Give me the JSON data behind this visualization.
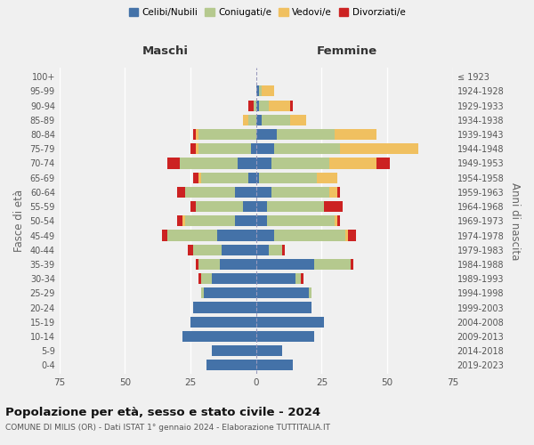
{
  "age_groups": [
    "100+",
    "95-99",
    "90-94",
    "85-89",
    "80-84",
    "75-79",
    "70-74",
    "65-69",
    "60-64",
    "55-59",
    "50-54",
    "45-49",
    "40-44",
    "35-39",
    "30-34",
    "25-29",
    "20-24",
    "15-19",
    "10-14",
    "5-9",
    "0-4"
  ],
  "birth_years": [
    "≤ 1923",
    "1924-1928",
    "1929-1933",
    "1934-1938",
    "1939-1943",
    "1944-1948",
    "1949-1953",
    "1954-1958",
    "1959-1963",
    "1964-1968",
    "1969-1973",
    "1974-1978",
    "1979-1983",
    "1984-1988",
    "1989-1993",
    "1994-1998",
    "1999-2003",
    "2004-2008",
    "2009-2013",
    "2014-2018",
    "2019-2023"
  ],
  "males": {
    "celibe": [
      0,
      0,
      0,
      0,
      0,
      2,
      7,
      3,
      8,
      5,
      8,
      15,
      13,
      14,
      17,
      20,
      24,
      25,
      28,
      17,
      19
    ],
    "coniugato": [
      0,
      0,
      1,
      3,
      22,
      20,
      22,
      18,
      19,
      18,
      19,
      19,
      11,
      8,
      4,
      1,
      0,
      0,
      0,
      0,
      0
    ],
    "vedovo": [
      0,
      0,
      0,
      2,
      1,
      1,
      0,
      1,
      0,
      0,
      1,
      0,
      0,
      0,
      0,
      0,
      0,
      0,
      0,
      0,
      0
    ],
    "divorziato": [
      0,
      0,
      2,
      0,
      1,
      2,
      5,
      2,
      3,
      2,
      2,
      2,
      2,
      1,
      1,
      0,
      0,
      0,
      0,
      0,
      0
    ]
  },
  "females": {
    "nubile": [
      0,
      1,
      1,
      2,
      8,
      7,
      6,
      1,
      6,
      4,
      4,
      7,
      5,
      22,
      15,
      20,
      21,
      26,
      22,
      10,
      14
    ],
    "coniugata": [
      0,
      1,
      4,
      11,
      22,
      25,
      22,
      22,
      22,
      22,
      26,
      27,
      5,
      14,
      2,
      1,
      0,
      0,
      0,
      0,
      0
    ],
    "vedova": [
      0,
      5,
      8,
      6,
      16,
      30,
      18,
      8,
      3,
      0,
      1,
      1,
      0,
      0,
      0,
      0,
      0,
      0,
      0,
      0,
      0
    ],
    "divorziata": [
      0,
      0,
      1,
      0,
      0,
      0,
      5,
      0,
      1,
      7,
      1,
      3,
      1,
      1,
      1,
      0,
      0,
      0,
      0,
      0,
      0
    ]
  },
  "colors": {
    "celibe": "#4472a8",
    "coniugato": "#b5c98e",
    "vedovo": "#f0c060",
    "divorziato": "#cc2222"
  },
  "xlim": 75,
  "title": "Popolazione per età, sesso e stato civile - 2024",
  "subtitle": "COMUNE DI MILIS (OR) - Dati ISTAT 1° gennaio 2024 - Elaborazione TUTTITALIA.IT",
  "legend_labels": [
    "Celibi/Nubili",
    "Coniugati/e",
    "Vedovi/e",
    "Divorziati/e"
  ],
  "maschi_label": "Maschi",
  "femmine_label": "Femmine",
  "fasce_label": "Fasce di età",
  "anni_label": "Anni di nascita",
  "bg_color": "#f0f0f0",
  "bar_height": 0.75
}
